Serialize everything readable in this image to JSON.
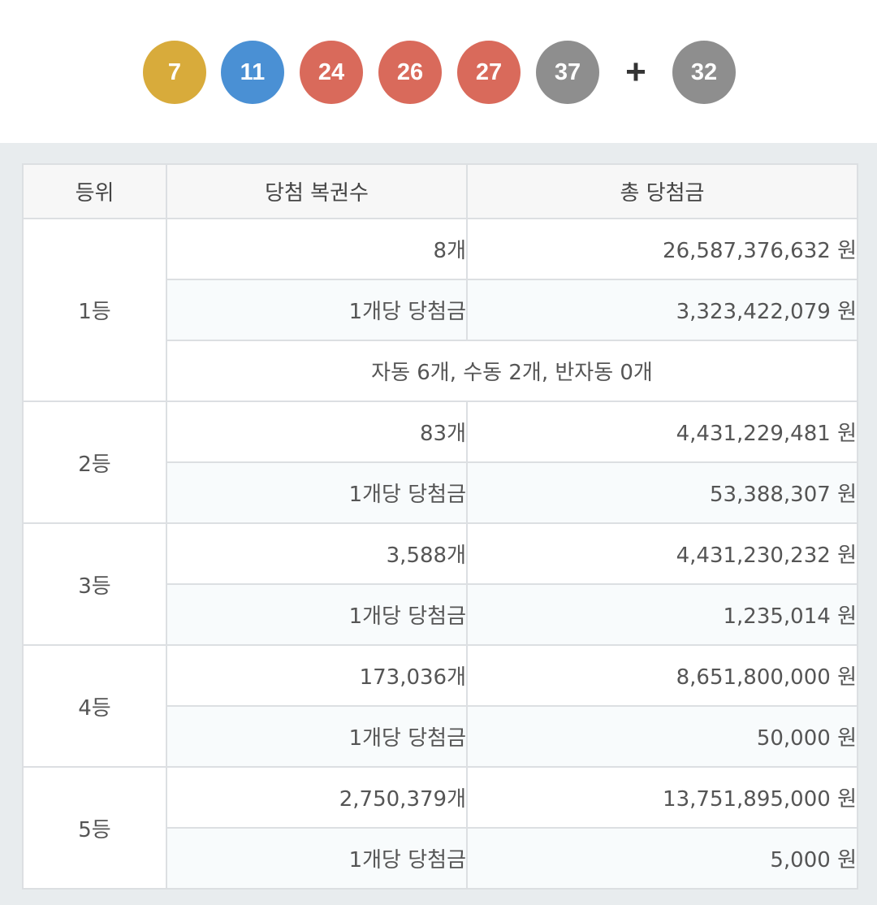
{
  "balls": [
    {
      "number": "7",
      "color": "#d8ab3b"
    },
    {
      "number": "11",
      "color": "#4a90d4"
    },
    {
      "number": "24",
      "color": "#d96a5b"
    },
    {
      "number": "26",
      "color": "#d96a5b"
    },
    {
      "number": "27",
      "color": "#d96a5b"
    },
    {
      "number": "37",
      "color": "#8e8e8e"
    }
  ],
  "plus": "+",
  "bonus": {
    "number": "32",
    "color": "#8e8e8e"
  },
  "table": {
    "headers": {
      "rank": "등위",
      "count": "당첨 복권수",
      "total": "총 당첨금"
    },
    "per_ticket_label": "1개당 당첨금",
    "rows": [
      {
        "rank": "1등",
        "count": "8개",
        "total": "26,587,376,632 원",
        "per_ticket": "3,323,422,079 원",
        "note": "자동 6개, 수동 2개, 반자동 0개"
      },
      {
        "rank": "2등",
        "count": "83개",
        "total": "4,431,229,481 원",
        "per_ticket": "53,388,307 원"
      },
      {
        "rank": "3등",
        "count": "3,588개",
        "total": "4,431,230,232 원",
        "per_ticket": "1,235,014 원"
      },
      {
        "rank": "4등",
        "count": "173,036개",
        "total": "8,651,800,000 원",
        "per_ticket": "50,000 원"
      },
      {
        "rank": "5등",
        "count": "2,750,379개",
        "total": "13,751,895,000 원",
        "per_ticket": "5,000 원"
      }
    ]
  }
}
